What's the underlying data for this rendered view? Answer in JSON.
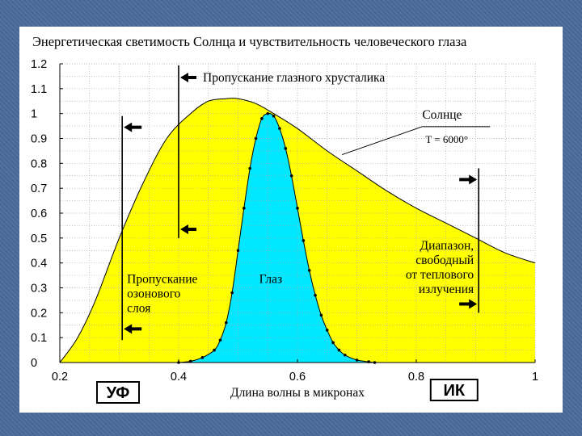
{
  "chart_data": {
    "type": "area",
    "title": "Энергетическая светимость Солнца и чувствительность человеческого глаза",
    "xlabel": "Длина волны в микронах",
    "ylabel": "",
    "xlim": [
      0.2,
      1.0
    ],
    "ylim": [
      0,
      1.2
    ],
    "x_ticks": [
      "0.2",
      "0.4",
      "0.6",
      "0.8",
      "1"
    ],
    "y_ticks": [
      "0",
      "0.1",
      "0.2",
      "0.3",
      "0.4",
      "0.5",
      "0.6",
      "0.7",
      "0.8",
      "0.9",
      "1",
      "1.1",
      "1.2"
    ],
    "grid": true,
    "series": [
      {
        "name": "Солнце",
        "color": "#ffff00",
        "x": [
          0.2,
          0.23,
          0.26,
          0.3,
          0.34,
          0.38,
          0.42,
          0.45,
          0.48,
          0.5,
          0.53,
          0.56,
          0.6,
          0.65,
          0.7,
          0.75,
          0.8,
          0.85,
          0.9,
          0.95,
          1.0
        ],
        "values": [
          0.0,
          0.1,
          0.25,
          0.5,
          0.72,
          0.9,
          1.0,
          1.05,
          1.06,
          1.06,
          1.04,
          1.0,
          0.94,
          0.85,
          0.77,
          0.69,
          0.62,
          0.56,
          0.5,
          0.44,
          0.4
        ]
      },
      {
        "name": "Глаз",
        "color": "#00e8ff",
        "x": [
          0.4,
          0.42,
          0.44,
          0.46,
          0.47,
          0.48,
          0.49,
          0.5,
          0.51,
          0.52,
          0.53,
          0.54,
          0.55,
          0.56,
          0.57,
          0.58,
          0.59,
          0.6,
          0.61,
          0.62,
          0.63,
          0.64,
          0.65,
          0.66,
          0.67,
          0.68,
          0.7,
          0.72,
          0.73
        ],
        "values": [
          0.0,
          0.005,
          0.02,
          0.05,
          0.09,
          0.16,
          0.28,
          0.45,
          0.62,
          0.78,
          0.9,
          0.98,
          1.0,
          0.99,
          0.94,
          0.86,
          0.75,
          0.62,
          0.49,
          0.37,
          0.27,
          0.19,
          0.13,
          0.08,
          0.05,
          0.03,
          0.01,
          0.003,
          0.0
        ]
      }
    ],
    "annotations": {
      "lens_transmission": "Пропускание глазного хрусталика",
      "sun_label": "Солнце",
      "temperature": "T = 6000°",
      "ozone": [
        "Пропускание",
        "озонового",
        "слоя"
      ],
      "eye_label": "Глаз",
      "thermal": [
        "Диапазон,",
        "свободный",
        "от теплового",
        "излучения"
      ],
      "uv": "УФ",
      "ir": "ИК"
    },
    "markers": {
      "ozone_line_x": 0.305,
      "lens_line_x": 0.4,
      "thermal_line_x": 0.905
    },
    "colors": {
      "axis": "#000000",
      "grid": "#aaaaaa",
      "arrow": "#000000"
    }
  }
}
